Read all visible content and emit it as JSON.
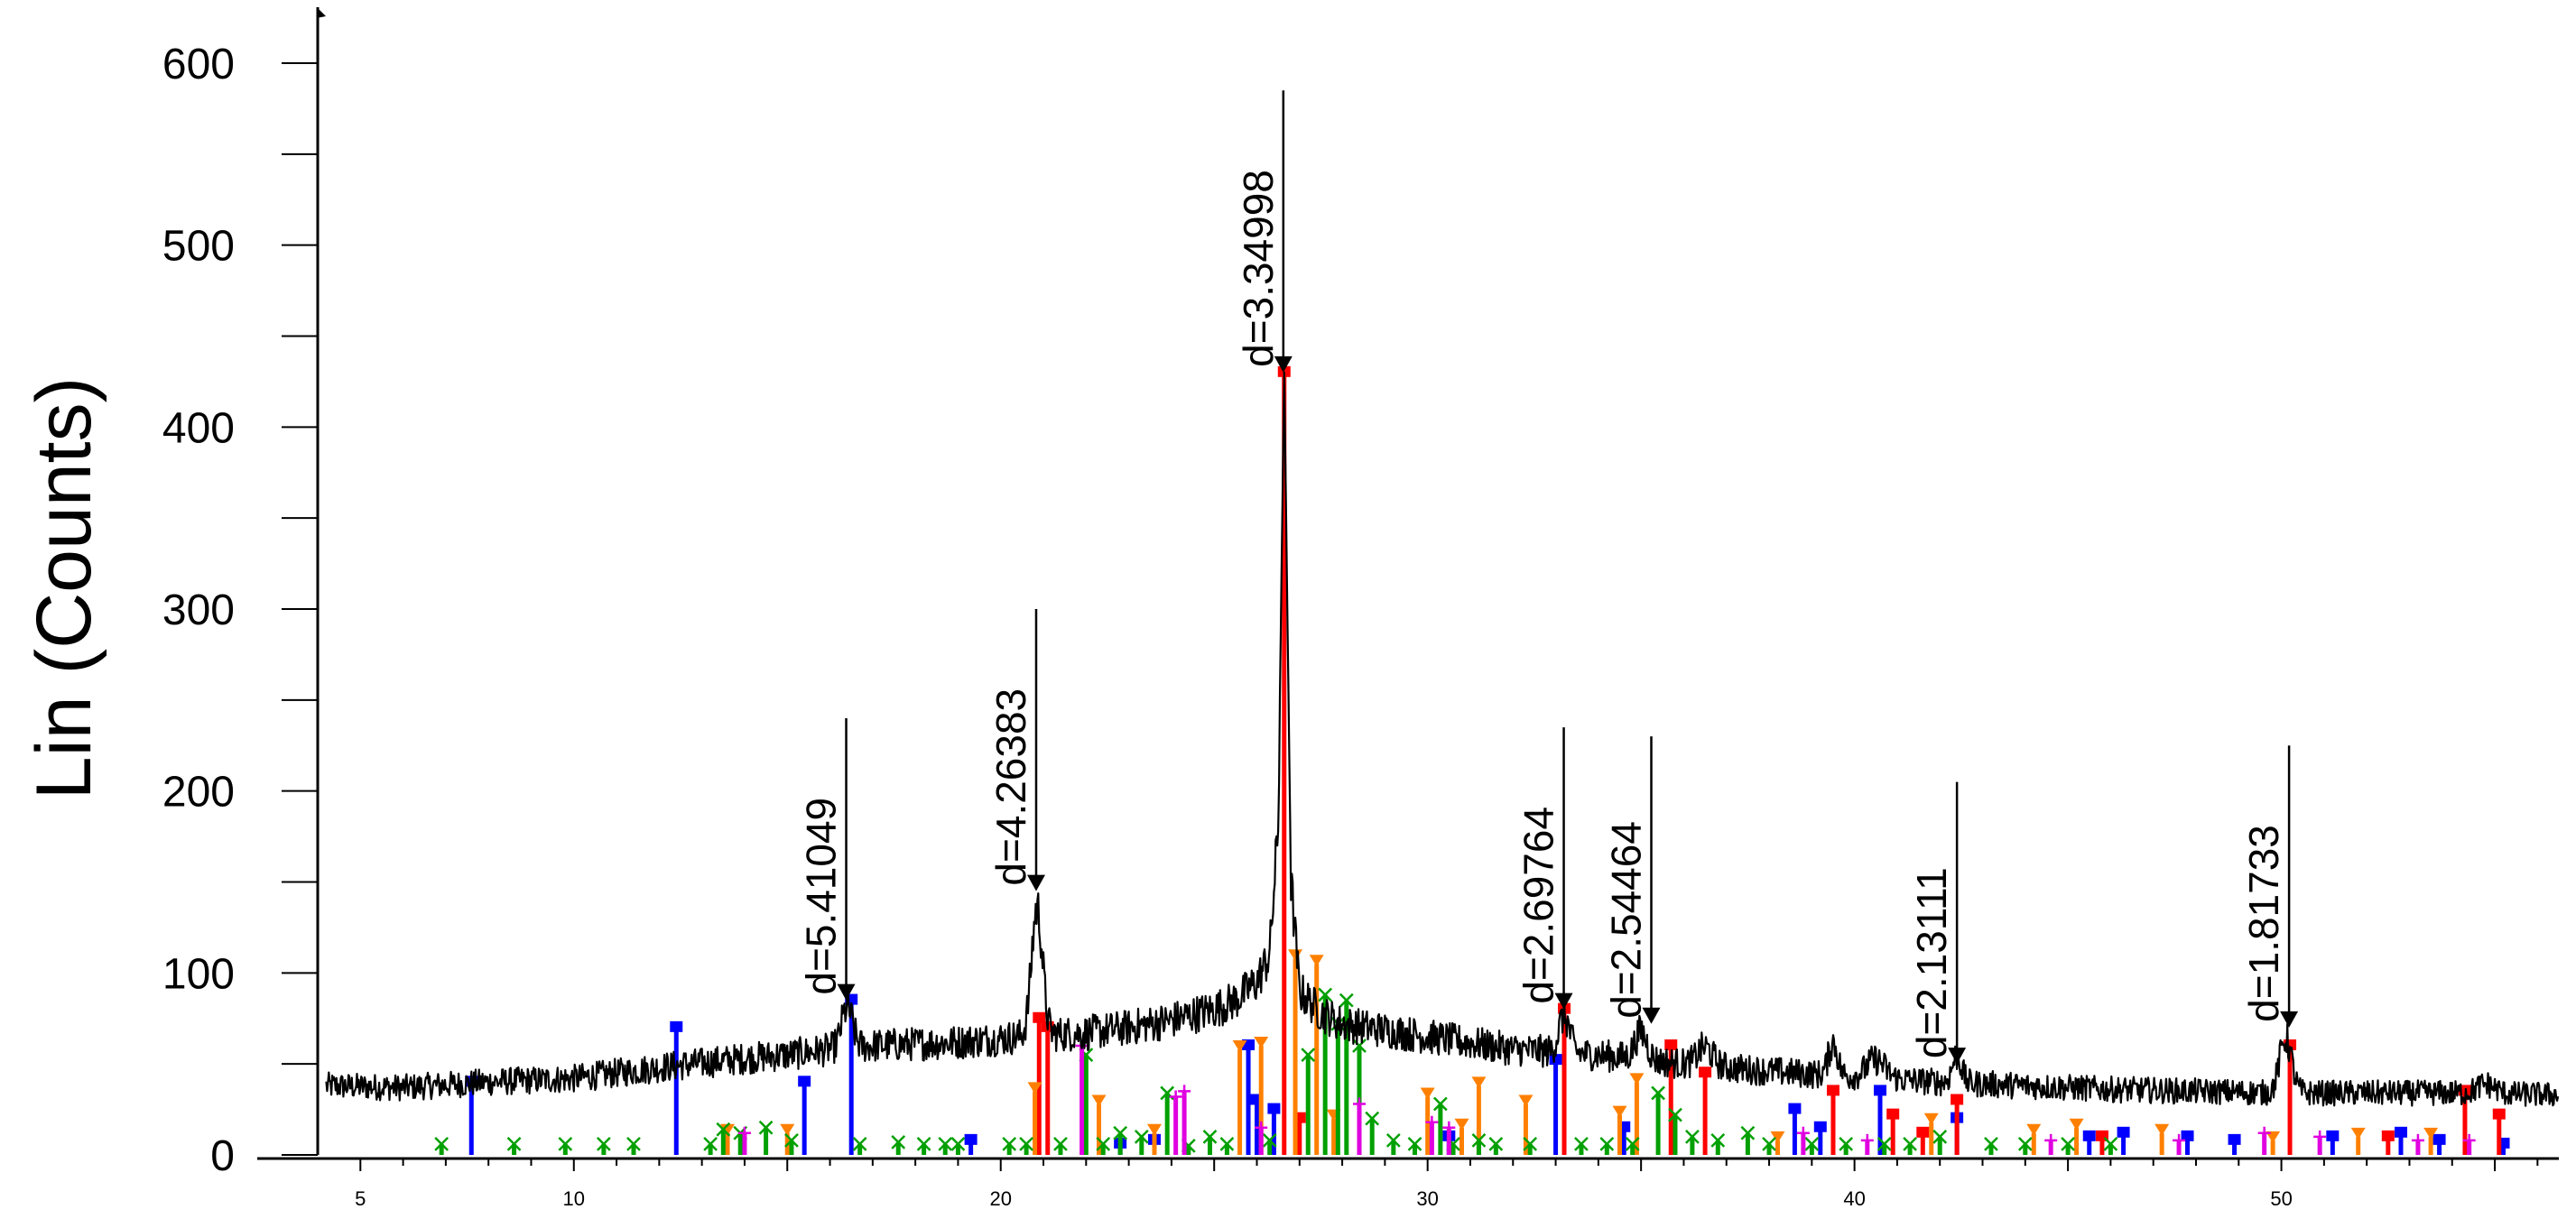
{
  "chart_data": {
    "type": "line",
    "ylabel": "Lin (Counts)",
    "xlabel": "",
    "xlim": [
      4,
      56.5
    ],
    "ylim": [
      0,
      600
    ],
    "x_ticks": [
      5,
      10,
      20,
      30,
      40,
      50
    ],
    "y_ticks": [
      0,
      100,
      200,
      300,
      400,
      500,
      600
    ],
    "grid": false,
    "series": [
      {
        "kind": "diffractogram",
        "baseline": [
          [
            4.2,
            38
          ],
          [
            6,
            37
          ],
          [
            8,
            40
          ],
          [
            10,
            42
          ],
          [
            12,
            48
          ],
          [
            14,
            53
          ],
          [
            15,
            55
          ],
          [
            16,
            58
          ],
          [
            17,
            60
          ],
          [
            18,
            61
          ],
          [
            19,
            62
          ],
          [
            20,
            64
          ],
          [
            21,
            66
          ],
          [
            22,
            67
          ],
          [
            23,
            70
          ],
          [
            24,
            74
          ],
          [
            25,
            80
          ],
          [
            25.5,
            85
          ],
          [
            26,
            95
          ],
          [
            26.3,
            110
          ],
          [
            26.5,
            180
          ],
          [
            26.64,
            430
          ],
          [
            26.8,
            150
          ],
          [
            27,
            90
          ],
          [
            27.5,
            78
          ],
          [
            28,
            72
          ],
          [
            30,
            65
          ],
          [
            32,
            58
          ],
          [
            34,
            55
          ],
          [
            36,
            50
          ],
          [
            38,
            46
          ],
          [
            40,
            43
          ],
          [
            42,
            40
          ],
          [
            44,
            38
          ],
          [
            46,
            36
          ],
          [
            48,
            35
          ],
          [
            50,
            34
          ],
          [
            52,
            34
          ],
          [
            54,
            34
          ],
          [
            56.5,
            33
          ]
        ],
        "peaks": [
          [
            16.4,
            22,
            0.18
          ],
          [
            20.85,
            70,
            0.18
          ],
          [
            33.2,
            20,
            0.18
          ],
          [
            35.0,
            15,
            0.2
          ],
          [
            36.5,
            10,
            0.25
          ],
          [
            39.5,
            18,
            0.15
          ],
          [
            40.5,
            10,
            0.3
          ],
          [
            42.4,
            15,
            0.15
          ],
          [
            50.1,
            30,
            0.2
          ],
          [
            54.8,
            5,
            0.3
          ]
        ]
      }
    ],
    "peak_labels": [
      {
        "x": 16.38,
        "y": 85,
        "top": 240,
        "text": "d=5.41049"
      },
      {
        "x": 20.83,
        "y": 145,
        "top": 300,
        "text": "d=4.26383"
      },
      {
        "x": 26.62,
        "y": 430,
        "top": 585,
        "text": "d=3.34998"
      },
      {
        "x": 33.19,
        "y": 80,
        "top": 235,
        "text": "d=2.69764"
      },
      {
        "x": 35.24,
        "y": 72,
        "top": 230,
        "text": "d=2.54464"
      },
      {
        "x": 42.4,
        "y": 50,
        "top": 205,
        "text": "d=2.13111"
      },
      {
        "x": 50.18,
        "y": 70,
        "top": 225,
        "text": "d=1.81733"
      }
    ],
    "reference_phases": [
      {
        "color": "#0000ff",
        "marker": "square",
        "x": [
          7.6,
          12.4,
          15.4,
          16.5,
          19.3,
          22.8,
          23.6,
          25.8,
          26.0,
          26.4,
          30.5,
          33.0,
          34.6,
          38.6,
          39.2,
          40.6,
          42.4,
          45.5,
          46.3,
          47.8,
          48.9,
          51.2,
          52.8,
          53.7,
          55.2
        ],
        "h": [
          40,
          70,
          40,
          85,
          8,
          6,
          8,
          60,
          30,
          25,
          10,
          52,
          15,
          25,
          15,
          35,
          20,
          10,
          12,
          10,
          8,
          10,
          12,
          8,
          6
        ]
      },
      {
        "color": "#ff0000",
        "marker": "square",
        "x": [
          20.9,
          21.1,
          26.64,
          27.0,
          33.2,
          35.7,
          36.5,
          39.5,
          40.9,
          41.6,
          42.4,
          45.8,
          50.2,
          52.5,
          54.3,
          55.1
        ],
        "h": [
          75,
          70,
          430,
          20,
          80,
          60,
          45,
          35,
          22,
          12,
          30,
          10,
          60,
          10,
          35,
          22
        ]
      },
      {
        "color": "#ff8000",
        "marker": "triangle",
        "x": [
          13.6,
          15.0,
          20.8,
          22.3,
          23.6,
          25.6,
          26.1,
          26.9,
          27.4,
          27.8,
          30.0,
          30.8,
          31.2,
          32.3,
          34.5,
          34.9,
          38.2,
          41.8,
          44.2,
          45.2,
          47.2,
          49.8,
          51.8,
          53.5
        ],
        "h": [
          12,
          12,
          35,
          28,
          12,
          58,
          60,
          108,
          105,
          20,
          32,
          15,
          38,
          28,
          22,
          40,
          8,
          18,
          12,
          15,
          12,
          8,
          10,
          10
        ]
      },
      {
        "color": "#00a000",
        "marker": "cross",
        "x": [
          6.9,
          8.6,
          9.8,
          10.7,
          11.4,
          13.2,
          13.5,
          13.9,
          14.5,
          15.1,
          16.7,
          17.6,
          18.2,
          18.7,
          19.0,
          20.2,
          20.6,
          21.4,
          22.0,
          22.4,
          22.8,
          23.3,
          23.9,
          24.4,
          24.9,
          25.3,
          26.3,
          27.2,
          27.6,
          27.9,
          28.1,
          28.4,
          28.7,
          29.2,
          29.7,
          30.3,
          30.6,
          31.2,
          31.6,
          32.4,
          33.6,
          34.2,
          34.8,
          35.4,
          35.8,
          36.2,
          36.8,
          37.5,
          38.0,
          39.0,
          39.8,
          40.7,
          41.3,
          42.0,
          43.2,
          44.0,
          45.0,
          46.0
        ],
        "h": [
          6,
          6,
          6,
          6,
          6,
          6,
          14,
          12,
          15,
          8,
          6,
          7,
          6,
          6,
          6,
          6,
          6,
          6,
          55,
          6,
          12,
          10,
          34,
          5,
          10,
          6,
          8,
          55,
          88,
          72,
          85,
          60,
          20,
          8,
          6,
          28,
          6,
          8,
          6,
          6,
          6,
          6,
          6,
          34,
          22,
          10,
          8,
          12,
          6,
          6,
          6,
          6,
          6,
          10,
          6,
          6,
          6,
          6
        ]
      },
      {
        "color": "#e000e0",
        "marker": "plus",
        "x": [
          14.0,
          21.9,
          24.1,
          24.3,
          26.1,
          28.4,
          30.1,
          30.5,
          38.8,
          40.3,
          44.6,
          47.6,
          49.6,
          50.9,
          53.2,
          54.4
        ],
        "h": [
          12,
          60,
          32,
          35,
          15,
          28,
          18,
          15,
          12,
          8,
          8,
          8,
          12,
          10,
          8,
          8
        ]
      }
    ]
  }
}
